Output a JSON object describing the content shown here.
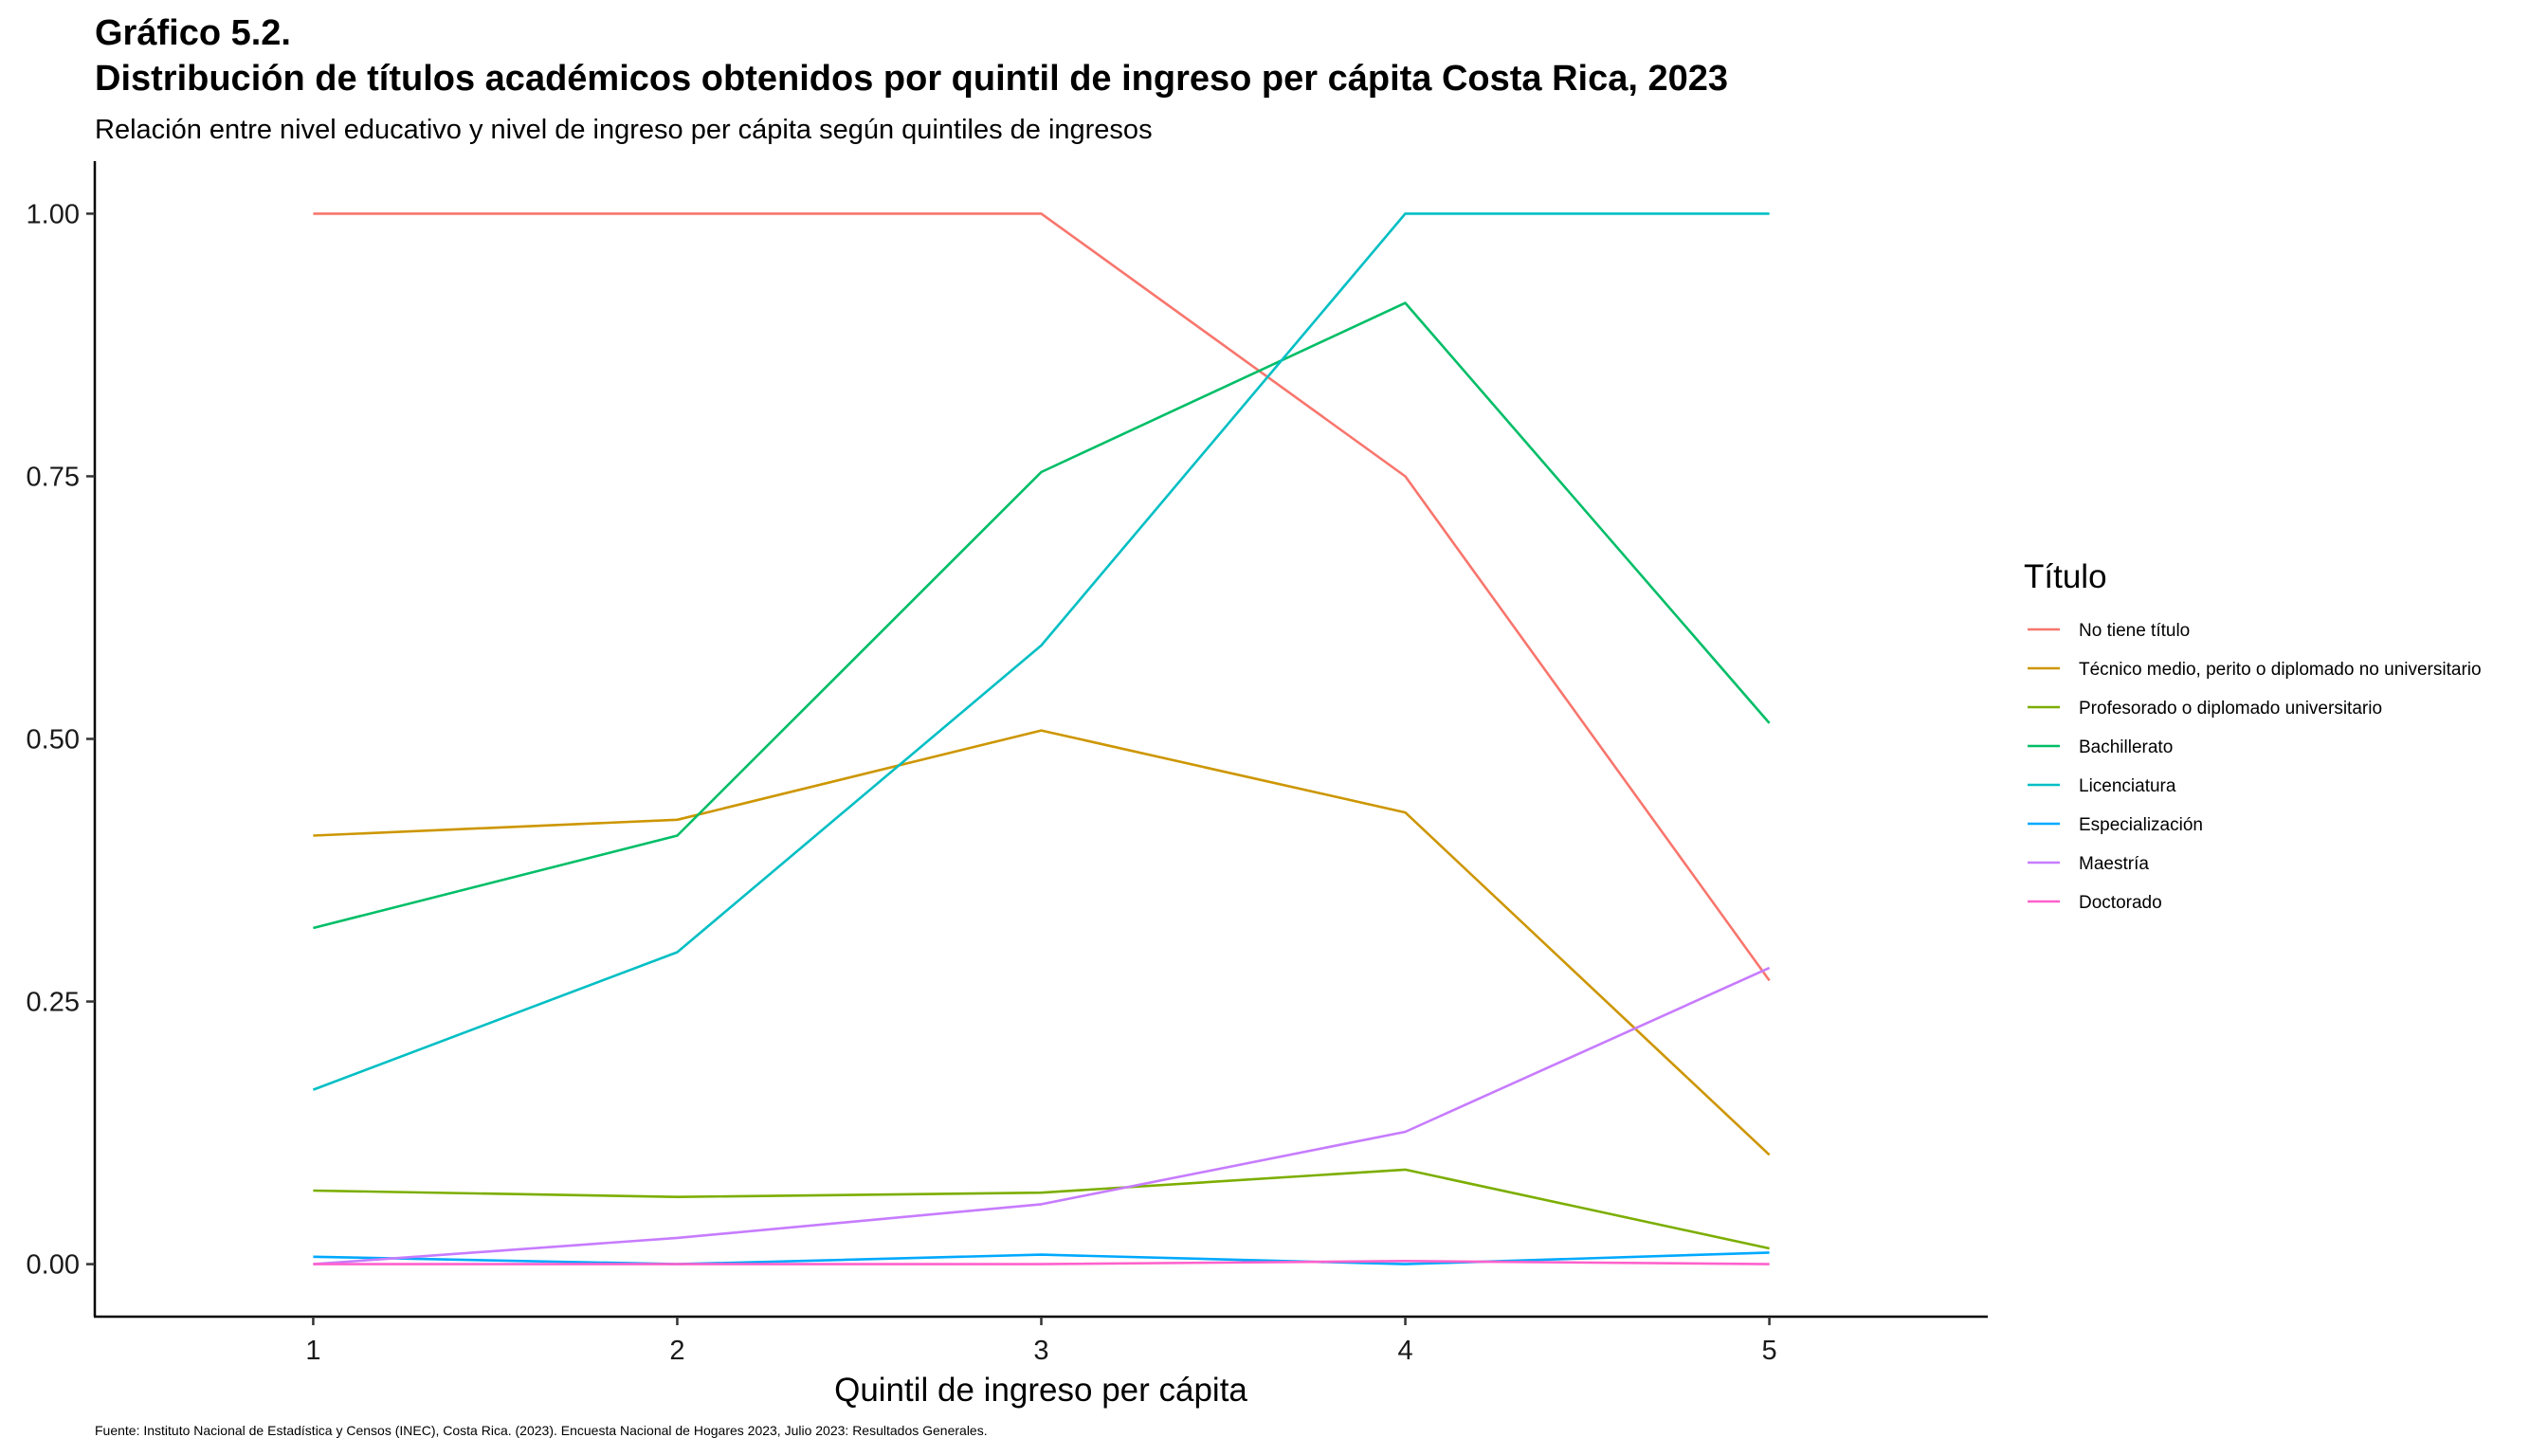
{
  "header": {
    "title_line1": "Gráfico 5.2.",
    "title_line2": "Distribución de títulos académicos obtenidos por quintil de ingreso per cápita Costa Rica, 2023",
    "subtitle": "Relación entre nivel educativo y nivel de ingreso per cápita según quintiles de ingresos"
  },
  "caption": "Fuente: Instituto Nacional de Estadística y Censos (INEC), Costa Rica. (2023). Encuesta Nacional de Hogares 2023, Julio 2023: Resultados Generales.",
  "chart_data": {
    "type": "line",
    "title": "Distribución de títulos académicos obtenidos por quintil de ingreso per cápita Costa Rica, 2023",
    "subtitle": "Relación entre nivel educativo y nivel de ingreso per cápita según quintiles de ingresos",
    "xlabel": "Quintil de ingreso per cápita",
    "ylabel": "",
    "x": [
      1,
      2,
      3,
      4,
      5
    ],
    "x_tick_labels": [
      "1",
      "2",
      "3",
      "4",
      "5"
    ],
    "xlim": [
      0.4,
      5.6
    ],
    "ylim": [
      -0.05,
      1.05
    ],
    "y_ticks": [
      0,
      0.25,
      0.5,
      0.75,
      1.0
    ],
    "y_tick_labels": [
      "0.00",
      "0.25",
      "0.50",
      "0.75",
      "1.00"
    ],
    "grid": false,
    "legend_title": "Título",
    "legend_position": "right",
    "series": [
      {
        "name": "No tiene título",
        "color": "#F8766D",
        "values": [
          1.0,
          1.0,
          1.0,
          0.75,
          0.27
        ]
      },
      {
        "name": "Técnico medio, perito o diplomado no universitario",
        "color": "#CD9600",
        "values": [
          0.408,
          0.423,
          0.508,
          0.43,
          0.104
        ]
      },
      {
        "name": "Profesorado o diplomado universitario",
        "color": "#7CAE00",
        "values": [
          0.07,
          0.064,
          0.068,
          0.09,
          0.015
        ]
      },
      {
        "name": "Bachillerato",
        "color": "#00BE67",
        "values": [
          0.32,
          0.408,
          0.754,
          0.915,
          0.515
        ]
      },
      {
        "name": "Licenciatura",
        "color": "#00BFC4",
        "values": [
          0.166,
          0.297,
          0.589,
          1.0,
          1.0
        ]
      },
      {
        "name": "Especialización",
        "color": "#00A9FF",
        "values": [
          0.007,
          0.0,
          0.009,
          0.0,
          0.011
        ]
      },
      {
        "name": "Maestría",
        "color": "#C77CFF",
        "values": [
          0.0,
          0.025,
          0.057,
          0.126,
          0.282
        ]
      },
      {
        "name": "Doctorado",
        "color": "#FF61CC",
        "values": [
          0.0,
          0.0,
          0.0,
          0.003,
          0.0
        ]
      }
    ]
  }
}
